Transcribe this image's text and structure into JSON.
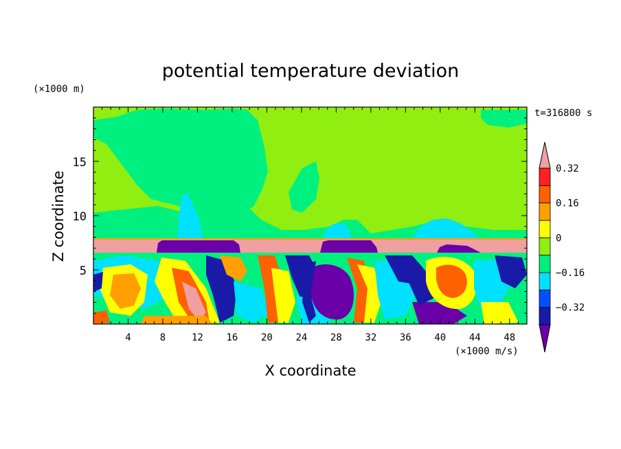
{
  "chart_data": {
    "type": "heatmap",
    "title": "potential temperature deviation",
    "time_label": "t=316800 s",
    "xlabel": "X coordinate",
    "ylabel": "Z coordinate",
    "x_unit": "(×1000 m/s)",
    "y_unit": "(×1000 m)",
    "xlim": [
      0,
      50
    ],
    "ylim": [
      0,
      20
    ],
    "x_ticks": [
      "4",
      "8",
      "12",
      "16",
      "20",
      "24",
      "28",
      "32",
      "36",
      "40",
      "44",
      "48"
    ],
    "y_ticks": [
      "5",
      "10",
      "15"
    ],
    "colorbar": {
      "labels": [
        "0.32",
        "0.16",
        "0",
        "−0.16",
        "−0.32"
      ],
      "levels": [
        -0.4,
        -0.32,
        -0.24,
        -0.16,
        -0.08,
        0,
        0.08,
        0.16,
        0.24,
        0.32,
        0.4
      ],
      "colors": [
        "#6a00a8",
        "#1a1aa8",
        "#0050ff",
        "#00e0ff",
        "#00f080",
        "#90ee10",
        "#ffff00",
        "#ffa000",
        "#ff6000",
        "#ff2020",
        "#f0a0a0"
      ],
      "extend": "both"
    },
    "regions": {
      "upper_background": "#90ee10",
      "upper_secondary": "#00f080",
      "inversion_layer": "#f0a0a0",
      "lower_layer": "mixed",
      "z_inversion_bottom": 6.6,
      "z_inversion_top": 7.8
    }
  }
}
